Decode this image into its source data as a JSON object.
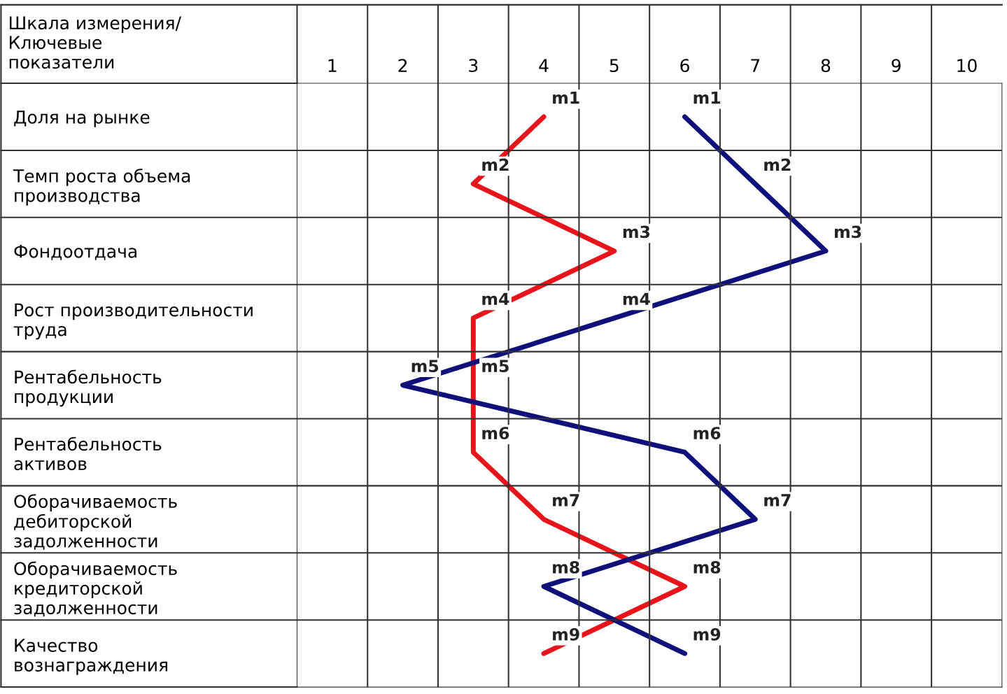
{
  "chart_data": {
    "type": "line",
    "orientation": "horizontal",
    "ylabel": "Шкала измерения/\nКлючевые\nпоказатели",
    "categories": [
      "Доля на рынке",
      "Темп роста объема\nпроизводства",
      "Фондоотдача",
      "Рост производительности\nтруда",
      "Рентабельность\nпродукции",
      "Рентабельность\nактивов",
      "Оборачиваемость\nдебиторской\nзадолженности",
      "Оборачиваемость\nкредиторской\nзадолженности",
      "Качество\nвознаграждения"
    ],
    "xlim": [
      0.5,
      10.5
    ],
    "xticks": [
      1,
      2,
      3,
      4,
      5,
      6,
      7,
      8,
      9,
      10
    ],
    "grid": true,
    "marker": "none",
    "line_style": "solid",
    "series": [
      {
        "color": "#e8141b",
        "values": [
          4,
          3,
          5,
          3,
          3,
          3,
          4,
          6,
          4
        ],
        "value_labels": [
          "m1",
          "m2",
          "m3",
          "m4",
          "m5",
          "m6",
          "m7",
          "m8",
          "m9"
        ]
      },
      {
        "color": "#10107a",
        "values": [
          6,
          7,
          8,
          5,
          2,
          6,
          7,
          4,
          6
        ],
        "value_labels": [
          "m1",
          "m2",
          "m3",
          "m4",
          "m5",
          "m6",
          "m7",
          "m8",
          "m9"
        ]
      }
    ]
  }
}
